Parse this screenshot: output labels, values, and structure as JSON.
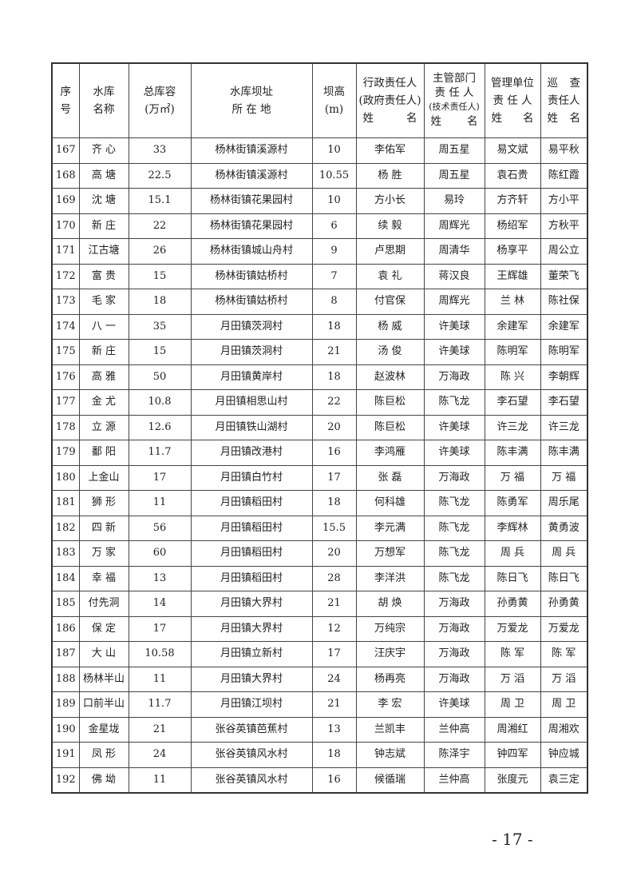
{
  "header": {
    "seq": [
      "序",
      "号"
    ],
    "name": [
      "水库",
      "名称"
    ],
    "capacity": [
      "总库容",
      "(万㎡)"
    ],
    "location": [
      "水库坝址",
      "所 在 地"
    ],
    "height": [
      "坝高",
      "(m)"
    ],
    "admin": [
      "行政责任人",
      "(政府责任人)",
      "姓",
      "名"
    ],
    "dept": [
      "主管部门",
      "责 任 人",
      "(技术责任人)",
      "姓",
      "名"
    ],
    "mgmt": [
      "管理单位",
      "责 任 人",
      "姓",
      "名"
    ],
    "patrol": [
      "巡",
      "查",
      "责任人",
      "姓",
      "名"
    ]
  },
  "rows": [
    [
      "167",
      "齐 心",
      "33",
      "杨林街镇溪源村",
      "10",
      "李佑军",
      "周五星",
      "易文斌",
      "易平秋"
    ],
    [
      "168",
      "高 塘",
      "22.5",
      "杨林街镇溪源村",
      "10.55",
      "杨 胜",
      "周五星",
      "袁石贵",
      "陈红霞"
    ],
    [
      "169",
      "沈 塘",
      "15.1",
      "杨林街镇花果园村",
      "10",
      "方小长",
      "易玲",
      "方齐轩",
      "方小平"
    ],
    [
      "170",
      "新 庄",
      "22",
      "杨林街镇花果园村",
      "6",
      "续 毅",
      "周辉光",
      "杨绍军",
      "方秋平"
    ],
    [
      "171",
      "江古塘",
      "26",
      "杨林街镇城山舟村",
      "9",
      "卢思期",
      "周清华",
      "杨享平",
      "周公立"
    ],
    [
      "172",
      "富 贵",
      "15",
      "杨林街镇姑桥村",
      "7",
      "袁 礼",
      "蒋汉良",
      "王辉雄",
      "董荣飞"
    ],
    [
      "173",
      "毛 家",
      "18",
      "杨林街镇姑桥村",
      "8",
      "付官保",
      "周辉光",
      "兰 林",
      "陈社保"
    ],
    [
      "174",
      "八 一",
      "35",
      "月田镇茨洞村",
      "18",
      "杨 威",
      "许美球",
      "余建军",
      "余建军"
    ],
    [
      "175",
      "新 庄",
      "15",
      "月田镇茨洞村",
      "21",
      "汤 俊",
      "许美球",
      "陈明军",
      "陈明军"
    ],
    [
      "176",
      "高 雅",
      "50",
      "月田镇黄岸村",
      "18",
      "赵波林",
      "万海政",
      "陈 兴",
      "李朝辉"
    ],
    [
      "177",
      "金 尤",
      "10.8",
      "月田镇相思山村",
      "22",
      "陈巨松",
      "陈飞龙",
      "李石望",
      "李石望"
    ],
    [
      "178",
      "立 源",
      "12.6",
      "月田镇铁山湖村",
      "20",
      "陈巨松",
      "许美球",
      "许三龙",
      "许三龙"
    ],
    [
      "179",
      "鄱 阳",
      "11.7",
      "月田镇改港村",
      "16",
      "李鸿雁",
      "许美球",
      "陈丰满",
      "陈丰满"
    ],
    [
      "180",
      "上金山",
      "17",
      "月田镇白竹村",
      "17",
      "张 磊",
      "万海政",
      "万 福",
      "万 福"
    ],
    [
      "181",
      "狮 形",
      "11",
      "月田镇稻田村",
      "18",
      "何科雄",
      "陈飞龙",
      "陈勇军",
      "周乐尾"
    ],
    [
      "182",
      "四 新",
      "56",
      "月田镇稻田村",
      "15.5",
      "李元满",
      "陈飞龙",
      "李辉林",
      "黄勇波"
    ],
    [
      "183",
      "万 家",
      "60",
      "月田镇稻田村",
      "20",
      "万想军",
      "陈飞龙",
      "周 兵",
      "周 兵"
    ],
    [
      "184",
      "幸 福",
      "13",
      "月田镇稻田村",
      "28",
      "李洋洪",
      "陈飞龙",
      "陈日飞",
      "陈日飞"
    ],
    [
      "185",
      "付先洞",
      "14",
      "月田镇大界村",
      "21",
      "胡 焕",
      "万海政",
      "孙勇黄",
      "孙勇黄"
    ],
    [
      "186",
      "保 定",
      "17",
      "月田镇大界村",
      "12",
      "万纯宗",
      "万海政",
      "万爱龙",
      "万爱龙"
    ],
    [
      "187",
      "大 山",
      "10.58",
      "月田镇立新村",
      "17",
      "汪庆宇",
      "万海政",
      "陈 军",
      "陈 军"
    ],
    [
      "188",
      "杨林半山",
      "11",
      "月田镇大界村",
      "24",
      "杨再亮",
      "万海政",
      "万 滔",
      "万 滔"
    ],
    [
      "189",
      "口前半山",
      "11.7",
      "月田镇江坝村",
      "21",
      "李 宏",
      "许美球",
      "周 卫",
      "周 卫"
    ],
    [
      "190",
      "金星垅",
      "21",
      "张谷英镇芭蕉村",
      "13",
      "兰凯丰",
      "兰仲高",
      "周湘红",
      "周湘欢"
    ],
    [
      "191",
      "凤 形",
      "24",
      "张谷英镇风水村",
      "18",
      "钟志斌",
      "陈泽宇",
      "钟四军",
      "钟应城"
    ],
    [
      "192",
      "佛 坳",
      "11",
      "张谷英镇风水村",
      "16",
      "候循瑞",
      "兰仲高",
      "张度元",
      "袁三定"
    ]
  ],
  "page_number": "- 17 -"
}
